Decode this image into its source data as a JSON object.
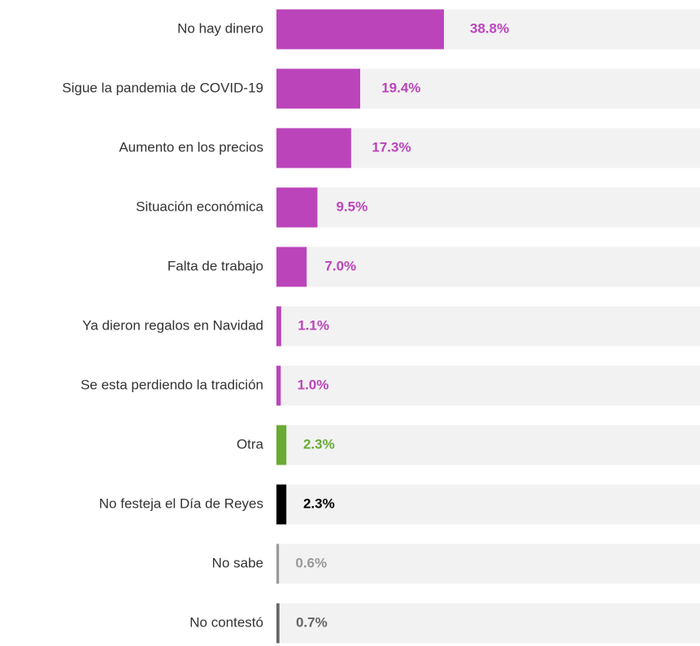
{
  "chart_data": {
    "type": "bar",
    "orientation": "horizontal",
    "categories": [
      "No hay dinero",
      "Sigue la pandemia de COVID-19",
      "Aumento en los precios",
      "Situación económica",
      "Falta de trabajo",
      "Ya dieron regalos en Navidad",
      "Se esta perdiendo la tradición",
      "Otra",
      "No festeja el Día de Reyes",
      "No sabe",
      "No contestó"
    ],
    "values": [
      38.8,
      19.4,
      17.3,
      9.5,
      7.0,
      1.1,
      1.0,
      2.3,
      2.3,
      0.6,
      0.7
    ],
    "value_labels": [
      "38.8%",
      "19.4%",
      "17.3%",
      "9.5%",
      "7.0%",
      "1.1%",
      "1.0%",
      "2.3%",
      "2.3%",
      "0.6%",
      "0.7%"
    ],
    "colors": [
      "#bb44bb",
      "#bb44bb",
      "#bb44bb",
      "#bb44bb",
      "#bb44bb",
      "#bb44bb",
      "#bb44bb",
      "#6aaa35",
      "#000000",
      "#999999",
      "#666666"
    ],
    "xlim": [
      0,
      100
    ]
  }
}
